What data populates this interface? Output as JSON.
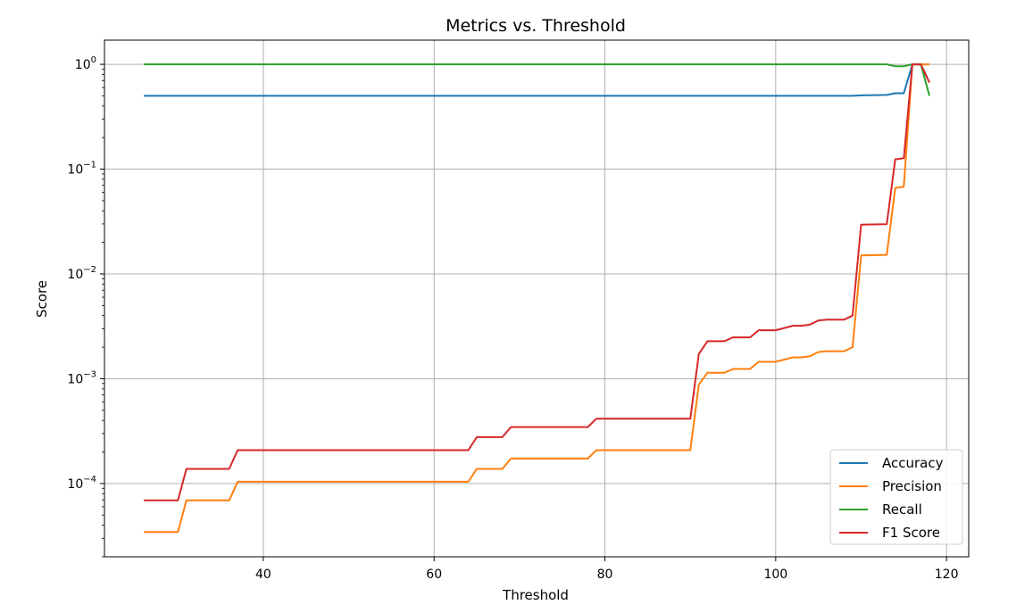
{
  "chart_data": {
    "type": "line",
    "title": "Metrics vs. Threshold",
    "xlabel": "Threshold",
    "ylabel": "Score",
    "xlim": [
      21.4,
      122.6
    ],
    "ylim": [
      2e-05,
      1.7
    ],
    "y_scale": "log",
    "grid": true,
    "legend_position": "lower-right",
    "x_ticks": [
      {
        "value": 40,
        "label": "40"
      },
      {
        "value": 60,
        "label": "60"
      },
      {
        "value": 80,
        "label": "80"
      },
      {
        "value": 100,
        "label": "100"
      },
      {
        "value": 120,
        "label": "120"
      }
    ],
    "y_ticks": [
      {
        "value": 0.0001,
        "base": "10",
        "exp": "−4"
      },
      {
        "value": 0.001,
        "base": "10",
        "exp": "−3"
      },
      {
        "value": 0.01,
        "base": "10",
        "exp": "−2"
      },
      {
        "value": 0.1,
        "base": "10",
        "exp": "−1"
      },
      {
        "value": 1,
        "base": "10",
        "exp": "0"
      }
    ],
    "series": [
      {
        "name": "Accuracy",
        "color": "#1f77b4",
        "points": [
          [
            26,
            0.5
          ],
          [
            109,
            0.5
          ],
          [
            110,
            0.505
          ],
          [
            113,
            0.51
          ],
          [
            114,
            0.53
          ],
          [
            115,
            0.53
          ],
          [
            116,
            1.0
          ],
          [
            117,
            1.0
          ],
          [
            118,
            0.67
          ]
        ]
      },
      {
        "name": "Precision",
        "color": "#ff7f0e",
        "points": [
          [
            26,
            3.45e-05
          ],
          [
            30,
            3.45e-05
          ],
          [
            31,
            6.9e-05
          ],
          [
            36,
            6.9e-05
          ],
          [
            37,
            0.000104
          ],
          [
            64,
            0.000104
          ],
          [
            65,
            0.000138
          ],
          [
            68,
            0.000138
          ],
          [
            69,
            0.000173
          ],
          [
            78,
            0.000173
          ],
          [
            79,
            0.000208
          ],
          [
            90,
            0.000208
          ],
          [
            91,
            0.00088
          ],
          [
            92,
            0.00114
          ],
          [
            94,
            0.00114
          ],
          [
            95,
            0.00124
          ],
          [
            97,
            0.00124
          ],
          [
            98,
            0.00145
          ],
          [
            100,
            0.00145
          ],
          [
            102,
            0.0016
          ],
          [
            103,
            0.0016
          ],
          [
            104,
            0.00164
          ],
          [
            105,
            0.0018
          ],
          [
            106,
            0.00183
          ],
          [
            108,
            0.00183
          ],
          [
            109,
            0.002
          ],
          [
            110,
            0.015
          ],
          [
            113,
            0.0152
          ],
          [
            114,
            0.066
          ],
          [
            115,
            0.068
          ],
          [
            116,
            1.0
          ],
          [
            118,
            1.0
          ]
        ]
      },
      {
        "name": "Recall",
        "color": "#2ca02c",
        "points": [
          [
            26,
            1.0
          ],
          [
            113,
            1.0
          ],
          [
            114,
            0.96
          ],
          [
            115,
            0.96
          ],
          [
            116,
            1.0
          ],
          [
            117,
            1.0
          ],
          [
            118,
            0.5
          ]
        ]
      },
      {
        "name": "F1 Score",
        "color": "#d62728",
        "points": [
          [
            26,
            6.9e-05
          ],
          [
            30,
            6.9e-05
          ],
          [
            31,
            0.000138
          ],
          [
            36,
            0.000138
          ],
          [
            37,
            0.000208
          ],
          [
            64,
            0.000208
          ],
          [
            65,
            0.000277
          ],
          [
            68,
            0.000277
          ],
          [
            69,
            0.000346
          ],
          [
            78,
            0.000346
          ],
          [
            79,
            0.000416
          ],
          [
            90,
            0.000416
          ],
          [
            91,
            0.00172
          ],
          [
            92,
            0.00228
          ],
          [
            94,
            0.00228
          ],
          [
            95,
            0.00248
          ],
          [
            97,
            0.00248
          ],
          [
            98,
            0.0029
          ],
          [
            100,
            0.0029
          ],
          [
            102,
            0.0032
          ],
          [
            103,
            0.0032
          ],
          [
            104,
            0.00328
          ],
          [
            105,
            0.0036
          ],
          [
            106,
            0.00366
          ],
          [
            108,
            0.00366
          ],
          [
            109,
            0.004
          ],
          [
            110,
            0.0295
          ],
          [
            113,
            0.0298
          ],
          [
            114,
            0.124
          ],
          [
            115,
            0.127
          ],
          [
            116,
            1.0
          ],
          [
            117,
            1.0
          ],
          [
            118,
            0.67
          ]
        ]
      }
    ]
  }
}
